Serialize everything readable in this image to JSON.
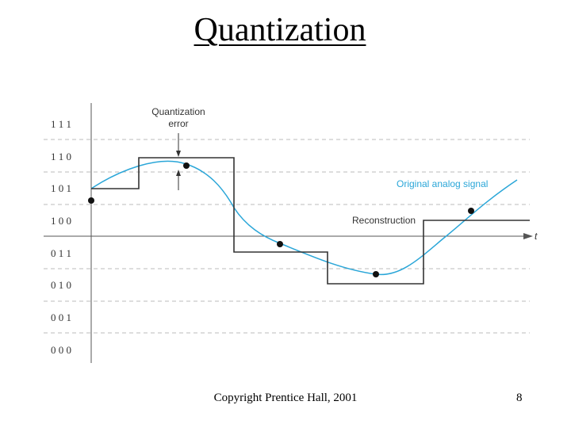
{
  "title": "Quantization",
  "footer": {
    "copyright": "Copyright Prentice Hall, 2001",
    "page_number": "8"
  },
  "diagram": {
    "levels": [
      {
        "code": "1 1 1"
      },
      {
        "code": "1 1 0"
      },
      {
        "code": "1 0 1"
      },
      {
        "code": "1 0 0"
      },
      {
        "code": "0 1 1"
      },
      {
        "code": "0 1 0"
      },
      {
        "code": "0 0 1"
      },
      {
        "code": "0 0 0"
      }
    ],
    "axis_label": "t",
    "annotations": {
      "quantization_error_line1": "Quantization",
      "quantization_error_line2": "error",
      "original_signal": "Original analog signal",
      "reconstruction": "Reconstruction"
    },
    "colors": {
      "signal": "#2aa6d8",
      "reconstruction": "#333333",
      "grid": "#bbbbbb"
    }
  }
}
